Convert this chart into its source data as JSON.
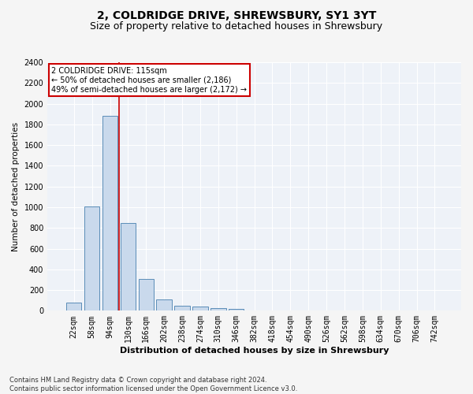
{
  "title1": "2, COLDRIDGE DRIVE, SHREWSBURY, SY1 3YT",
  "title2": "Size of property relative to detached houses in Shrewsbury",
  "xlabel": "Distribution of detached houses by size in Shrewsbury",
  "ylabel": "Number of detached properties",
  "bin_labels": [
    "22sqm",
    "58sqm",
    "94sqm",
    "130sqm",
    "166sqm",
    "202sqm",
    "238sqm",
    "274sqm",
    "310sqm",
    "346sqm",
    "382sqm",
    "418sqm",
    "454sqm",
    "490sqm",
    "526sqm",
    "562sqm",
    "598sqm",
    "634sqm",
    "670sqm",
    "706sqm",
    "742sqm"
  ],
  "bar_values": [
    80,
    1010,
    1880,
    850,
    310,
    110,
    50,
    40,
    25,
    15,
    5,
    5,
    0,
    0,
    0,
    0,
    0,
    0,
    0,
    0,
    0
  ],
  "bar_color": "#c9d9ec",
  "bar_edgecolor": "#5b8db8",
  "vline_color": "#cc0000",
  "annotation_text": "2 COLDRIDGE DRIVE: 115sqm\n← 50% of detached houses are smaller (2,186)\n49% of semi-detached houses are larger (2,172) →",
  "annotation_box_color": "#ffffff",
  "annotation_box_edgecolor": "#cc0000",
  "footnote": "Contains HM Land Registry data © Crown copyright and database right 2024.\nContains public sector information licensed under the Open Government Licence v3.0.",
  "ylim": [
    0,
    2400
  ],
  "yticks": [
    0,
    200,
    400,
    600,
    800,
    1000,
    1200,
    1400,
    1600,
    1800,
    2000,
    2200,
    2400
  ],
  "bg_color": "#eef2f8",
  "grid_color": "#ffffff",
  "fig_bg_color": "#f5f5f5",
  "title1_fontsize": 10,
  "title2_fontsize": 9,
  "xlabel_fontsize": 8,
  "ylabel_fontsize": 7.5,
  "tick_fontsize": 7,
  "annot_fontsize": 7,
  "footnote_fontsize": 6
}
